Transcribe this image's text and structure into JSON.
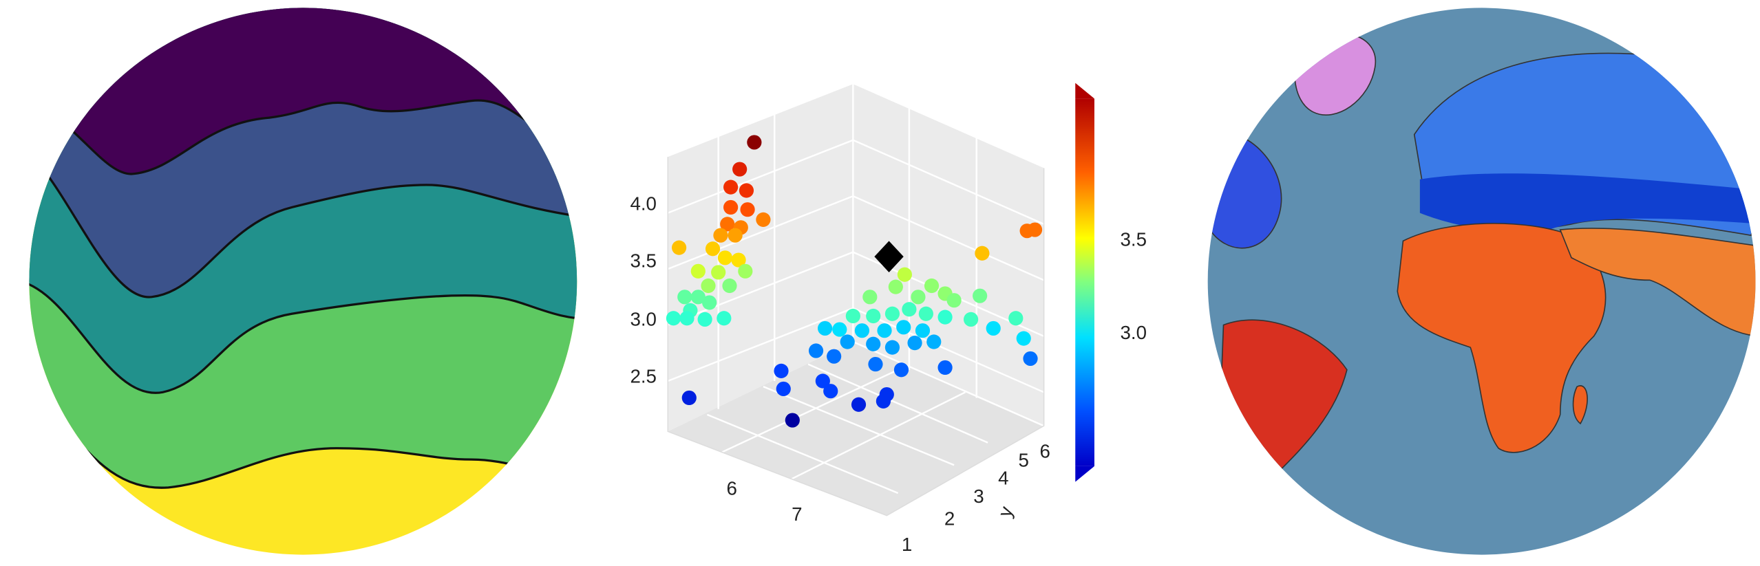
{
  "plot3d": {
    "z_ticks": [
      "4.0",
      "3.5",
      "3.0",
      "2.5"
    ],
    "x_ticks": [
      "6",
      "7"
    ],
    "y_ticks": [
      "1",
      "2",
      "3",
      "4",
      "5",
      "6"
    ],
    "y_label": "y",
    "colorbar_ticks": [
      "3.5",
      "3.0"
    ]
  }
}
